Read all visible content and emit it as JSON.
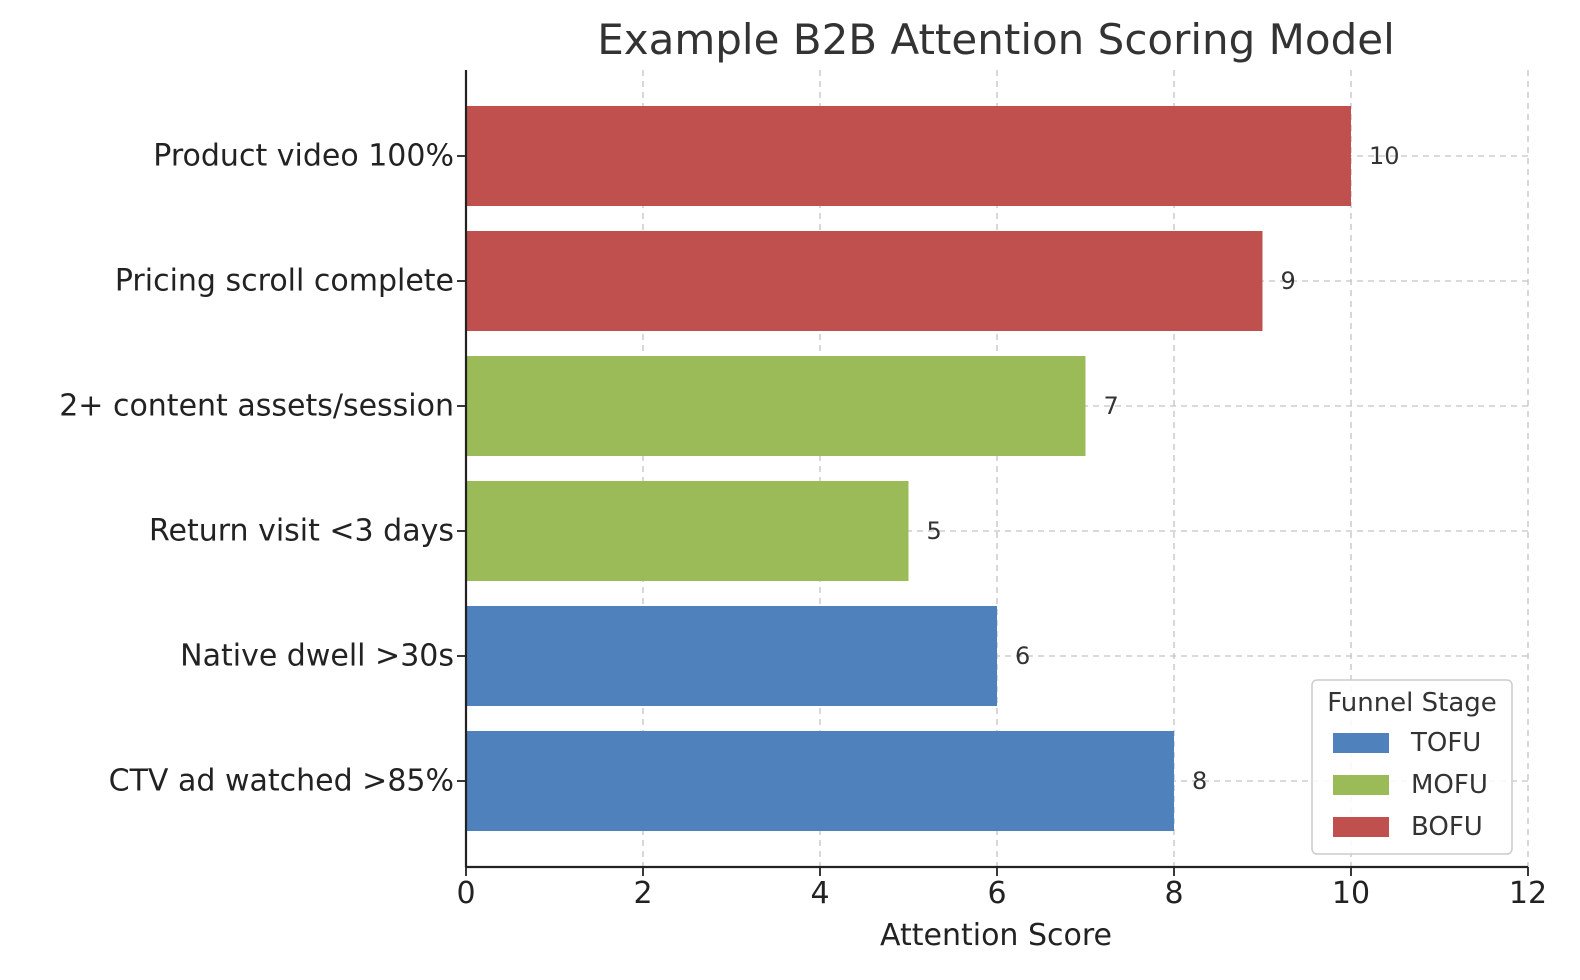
{
  "chart_data": {
    "type": "bar",
    "orientation": "horizontal",
    "title": "Example B2B Attention Scoring Model",
    "xlabel": "Attention Score",
    "ylabel": "",
    "xlim": [
      0,
      12
    ],
    "xticks": [
      0,
      2,
      4,
      6,
      8,
      10,
      12
    ],
    "grid": true,
    "categories": [
      "Product video 100%",
      "Pricing scroll complete",
      "2+ content assets/session",
      "Return visit <3 days",
      "Native dwell >30s",
      "CTV ad watched >85%"
    ],
    "values": [
      10,
      9,
      7,
      5,
      6,
      8
    ],
    "stages": [
      "BOFU",
      "BOFU",
      "MOFU",
      "MOFU",
      "TOFU",
      "TOFU"
    ],
    "legend": {
      "title": "Funnel Stage",
      "placement": "lower-right",
      "entries": [
        {
          "label": "TOFU",
          "color": "#4f81bd"
        },
        {
          "label": "MOFU",
          "color": "#9bbb59"
        },
        {
          "label": "BOFU",
          "color": "#c0504d"
        }
      ]
    }
  }
}
